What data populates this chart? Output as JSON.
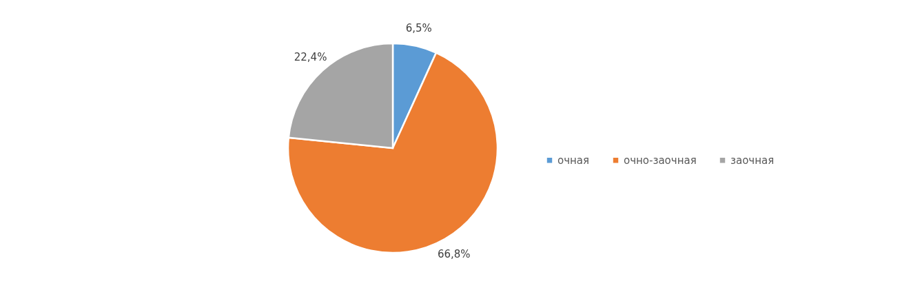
{
  "chart_data": {
    "type": "pie",
    "categories": [
      "очная",
      "очно-заочная",
      "заочная"
    ],
    "values": [
      6.5,
      66.8,
      22.4
    ],
    "value_labels": [
      "6,5%",
      "66,8%",
      "22,4%"
    ],
    "colors": [
      "#5b9bd5",
      "#ed7d31",
      "#a5a5a5"
    ],
    "legend": "right"
  }
}
